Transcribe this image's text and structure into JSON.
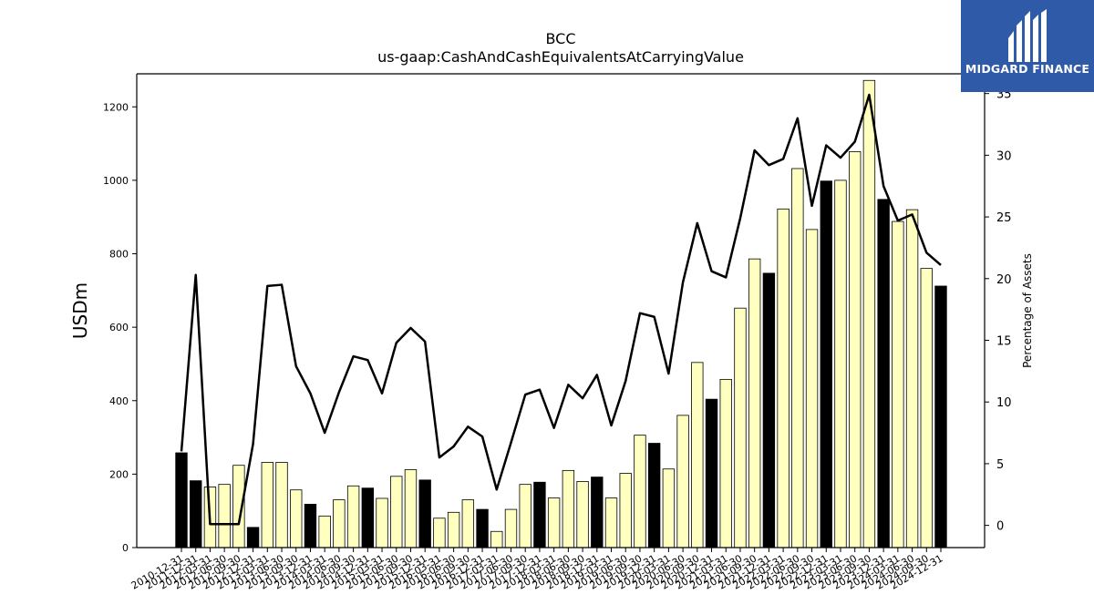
{
  "chart_data": {
    "type": "bar",
    "title": "BCC",
    "subtitle": "us-gaap:CashAndCashEquivalentsAtCarryingValue",
    "ylabel": "USDm",
    "y2label": "Percentage of Assets",
    "ylim": [
      0,
      1290
    ],
    "y2lim": [
      -1.8,
      36.6
    ],
    "yticks": [
      0,
      200,
      400,
      600,
      800,
      1000,
      1200
    ],
    "y2ticks": [
      0,
      5,
      10,
      15,
      20,
      25,
      30,
      35
    ],
    "categories": [
      "2010-12-31",
      "2011-12-31",
      "2012-03-31",
      "2012-06-30",
      "2012-09-30",
      "2012-12-31",
      "2013-03-31",
      "2013-06-30",
      "2013-09-30",
      "2013-12-31",
      "2014-03-31",
      "2014-06-30",
      "2014-09-30",
      "2014-12-31",
      "2015-03-31",
      "2015-06-30",
      "2015-09-30",
      "2015-12-31",
      "2016-03-31",
      "2016-06-30",
      "2016-09-30",
      "2016-12-31",
      "2017-03-31",
      "2017-06-30",
      "2017-09-30",
      "2017-12-31",
      "2018-03-31",
      "2018-06-30",
      "2018-09-30",
      "2018-12-31",
      "2019-03-31",
      "2019-06-30",
      "2019-09-30",
      "2019-12-31",
      "2020-03-31",
      "2020-06-30",
      "2020-09-30",
      "2020-12-31",
      "2021-03-31",
      "2021-06-30",
      "2021-09-30",
      "2021-12-31",
      "2022-03-31",
      "2022-06-30",
      "2022-09-30",
      "2022-12-31",
      "2023-03-31",
      "2023-06-30",
      "2023-09-30",
      "2023-12-31",
      "2024-03-31",
      "2024-06-30",
      "2024-09-30",
      "2024-12-31"
    ],
    "series": [
      {
        "type": "bar",
        "values": [
          258,
          182,
          165,
          172,
          224,
          55,
          232,
          232,
          157,
          118,
          86,
          130,
          168,
          162,
          134,
          194,
          212,
          184,
          80,
          96,
          130,
          104,
          44,
          104,
          172,
          178,
          135,
          210,
          180,
          192,
          135,
          202,
          306,
          284,
          214,
          360,
          504,
          404,
          458,
          652,
          786,
          747,
          922,
          1032,
          866,
          998,
          1000,
          1078,
          1272,
          948,
          888,
          920,
          760,
          712
        ],
        "highlight": [
          true,
          true,
          false,
          false,
          false,
          true,
          false,
          false,
          false,
          true,
          false,
          false,
          false,
          true,
          false,
          false,
          false,
          true,
          false,
          false,
          false,
          true,
          false,
          false,
          false,
          true,
          false,
          false,
          false,
          true,
          false,
          false,
          false,
          true,
          false,
          false,
          false,
          true,
          false,
          false,
          false,
          true,
          false,
          false,
          false,
          true,
          false,
          false,
          false,
          true,
          false,
          false,
          false,
          true
        ],
        "highlight_color": "#000000",
        "color": "#ffffc0"
      },
      {
        "type": "line",
        "axis": "right",
        "color": "#000000",
        "values": [
          6.0,
          20.3,
          0.1,
          0.1,
          0.1,
          6.6,
          19.4,
          19.5,
          12.9,
          10.7,
          7.5,
          10.8,
          13.7,
          13.4,
          10.7,
          14.8,
          16.0,
          14.9,
          5.5,
          6.4,
          8.0,
          7.2,
          2.9,
          6.7,
          10.6,
          11.0,
          7.9,
          11.4,
          10.3,
          12.2,
          8.1,
          11.7,
          17.2,
          16.9,
          12.3,
          19.7,
          24.5,
          20.6,
          20.1,
          24.9,
          30.4,
          29.2,
          29.7,
          33.0,
          25.9,
          30.8,
          29.8,
          31.1,
          34.9,
          27.5,
          24.7,
          25.2,
          22.1,
          21.1
        ]
      }
    ],
    "grid": false
  },
  "logo": {
    "text": "MIDGARD FINANCE"
  }
}
